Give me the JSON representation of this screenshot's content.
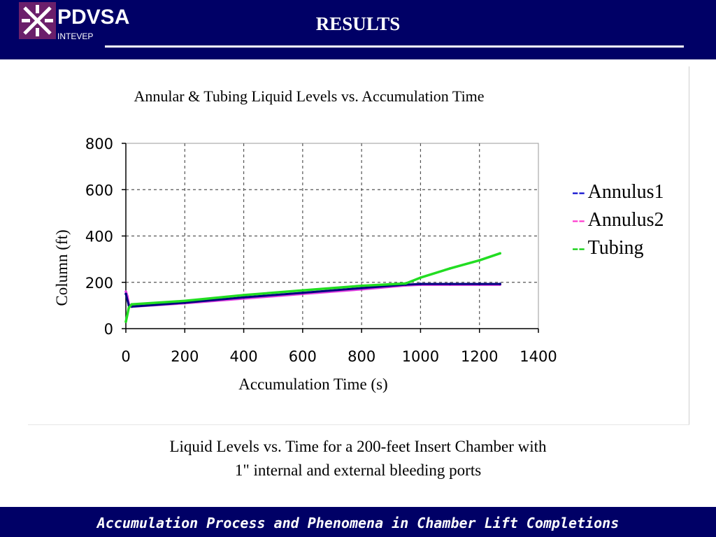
{
  "header": {
    "logo_text": "PDVSA",
    "logo_subtext": "INTEVEP",
    "title": "RESULTS"
  },
  "legend": {
    "dash": "--",
    "items": [
      {
        "label": "Annulus1",
        "color": "#0000cc"
      },
      {
        "label": "Annulus2",
        "color": "#ff33cc"
      },
      {
        "label": "Tubing",
        "color": "#00cc00"
      }
    ]
  },
  "caption": {
    "line1": "Liquid Levels vs. Time for a 200-feet Insert Chamber with",
    "line2": "1\" internal and external bleeding ports"
  },
  "footer": {
    "text": "Accumulation Process and Phenomena in Chamber Lift Completions"
  },
  "colors": {
    "header_bg": "#000066",
    "annulus1": "#000080",
    "annulus2": "#e040e0",
    "tubing": "#22dd22"
  },
  "chart_data": {
    "type": "line",
    "title": "Annular &  Tubing Liquid Levels vs. Accumulation Time",
    "xlabel": "Accumulation Time (s)",
    "ylabel": "Column (ft)",
    "xlim": [
      0,
      1400
    ],
    "ylim": [
      0,
      800
    ],
    "xticks": [
      "0",
      "200",
      "400",
      "600",
      "800",
      "1000",
      "1200",
      "1400"
    ],
    "yticks": [
      "0",
      "200",
      "400",
      "600",
      "800"
    ],
    "grid": true,
    "series": [
      {
        "name": "Annulus1",
        "x": [
          0,
          10,
          20,
          200,
          400,
          600,
          800,
          950,
          1000,
          1100,
          1200,
          1270
        ],
        "y": [
          150,
          100,
          95,
          112,
          135,
          155,
          175,
          190,
          193,
          193,
          193,
          193
        ]
      },
      {
        "name": "Annulus2",
        "x": [
          0,
          5,
          10,
          20,
          200,
          400,
          600,
          800,
          950,
          1000,
          1100,
          1200,
          1270
        ],
        "y": [
          160,
          140,
          105,
          95,
          110,
          130,
          150,
          170,
          187,
          190,
          190,
          190,
          190
        ]
      },
      {
        "name": "Tubing",
        "x": [
          0,
          10,
          20,
          200,
          400,
          600,
          800,
          950,
          1000,
          1100,
          1200,
          1270
        ],
        "y": [
          30,
          90,
          105,
          120,
          145,
          165,
          185,
          195,
          220,
          260,
          295,
          325
        ]
      }
    ]
  }
}
